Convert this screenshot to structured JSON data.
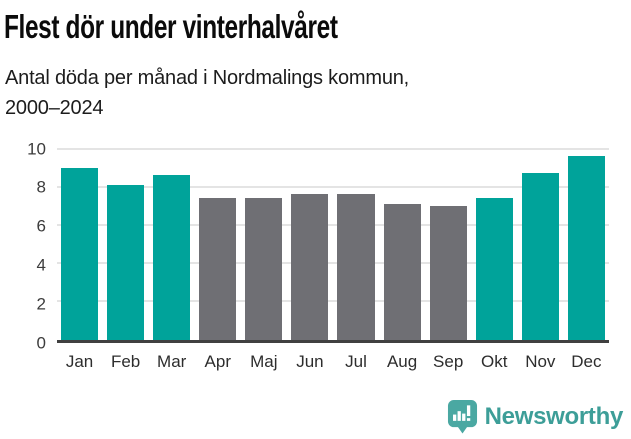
{
  "header": {
    "title": "Flest dör under vinterhalvåret",
    "subtitle_lines": [
      "Antal döda per månad i Nordmalings kommun,",
      "2000–2024"
    ]
  },
  "chart_data": {
    "type": "bar",
    "title": "Flest dör under vinterhalvåret",
    "subtitle": "Antal döda per månad i Nordmalings kommun, 2000–2024",
    "categories": [
      "Jan",
      "Feb",
      "Mar",
      "Apr",
      "Maj",
      "Jun",
      "Jul",
      "Aug",
      "Sep",
      "Okt",
      "Nov",
      "Dec"
    ],
    "values": [
      9.0,
      8.1,
      8.6,
      7.4,
      7.4,
      7.6,
      7.6,
      7.1,
      7.0,
      7.4,
      8.7,
      9.6
    ],
    "highlighted_categories": [
      "Jan",
      "Feb",
      "Mar",
      "Okt",
      "Nov",
      "Dec"
    ],
    "bar_color_highlight": "#00a39a",
    "bar_color_default": "#6f6f74",
    "xlabel": "",
    "ylabel": "",
    "ylim": [
      0,
      10
    ],
    "yticks": [
      0,
      2,
      4,
      6,
      8,
      10
    ],
    "grid": "horizontal",
    "legend": "none"
  },
  "footer": {
    "brand": "Newsworthy"
  },
  "colors": {
    "accent": "#00a39a",
    "muted_bar": "#6f6f74",
    "gridline": "#e4e4e4",
    "axis": "#404040",
    "logo_icon": "#4aa8a2",
    "logo_text": "#3d9e98"
  }
}
